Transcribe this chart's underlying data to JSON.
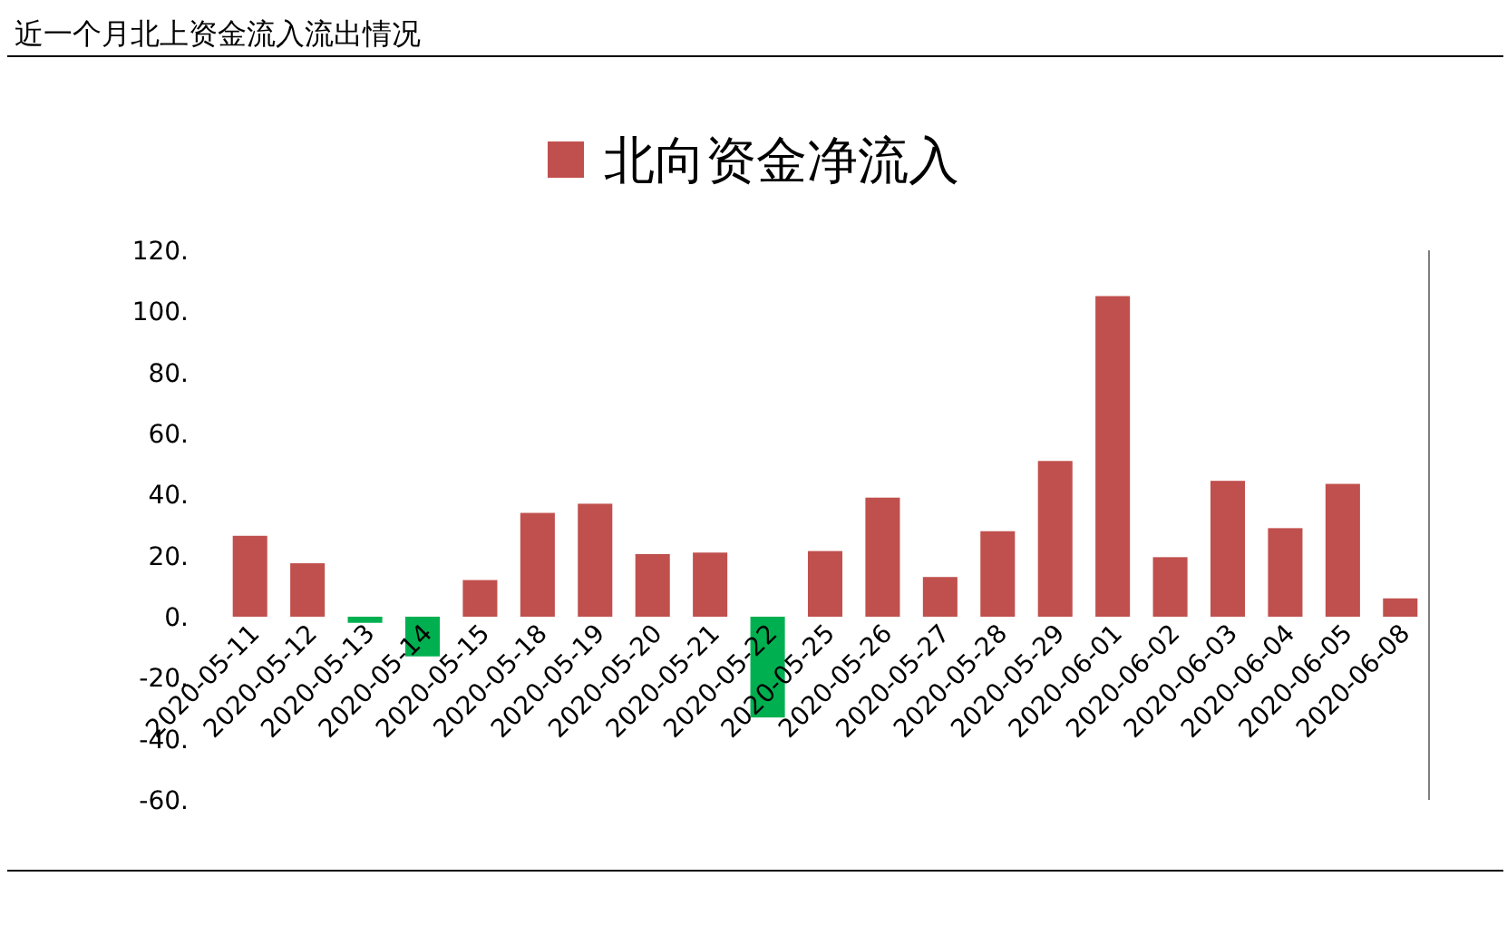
{
  "chart_data": {
    "type": "bar",
    "title": "近一个月北上资金流入流出情况",
    "categories": [
      "2020-05-11",
      "2020-05-12",
      "2020-05-13",
      "2020-05-14",
      "2020-05-15",
      "2020-05-18",
      "2020-05-19",
      "2020-05-20",
      "2020-05-21",
      "2020-05-22",
      "2020-05-25",
      "2020-05-26",
      "2020-05-27",
      "2020-05-28",
      "2020-05-29",
      "2020-06-01",
      "2020-06-02",
      "2020-06-03",
      "2020-06-04",
      "2020-06-05",
      "2020-06-08"
    ],
    "series": [
      {
        "name": "北向资金净流入",
        "color": "#c0504d",
        "colors": [
          "#c0504d",
          "#c0504d",
          "#00b050",
          "#00b050",
          "#c0504d",
          "#c0504d",
          "#c0504d",
          "#c0504d",
          "#c0504d",
          "#00b050",
          "#c0504d",
          "#c0504d",
          "#c0504d",
          "#c0504d",
          "#c0504d",
          "#c0504d",
          "#c0504d",
          "#c0504d",
          "#c0504d",
          "#c0504d",
          "#c0504d"
        ],
        "values": [
          26.5,
          17.5,
          -2,
          -13,
          12,
          34,
          37,
          20.5,
          21,
          -33,
          21.5,
          39,
          13,
          28,
          51,
          105,
          19.5,
          44.5,
          29,
          43.5,
          6
        ]
      }
    ],
    "ylim": [
      -60,
      120
    ],
    "yticks": [
      {
        "value": -60,
        "label": "-60."
      },
      {
        "value": -40,
        "label": "-40."
      },
      {
        "value": -20,
        "label": "-20."
      },
      {
        "value": 0,
        "label": "0."
      },
      {
        "value": 20,
        "label": "20."
      },
      {
        "value": 40,
        "label": "40."
      },
      {
        "value": 60,
        "label": "60."
      },
      {
        "value": 80,
        "label": "80."
      },
      {
        "value": 100,
        "label": "100."
      },
      {
        "value": 120,
        "label": "120."
      }
    ],
    "legend": "top",
    "grid": false
  }
}
